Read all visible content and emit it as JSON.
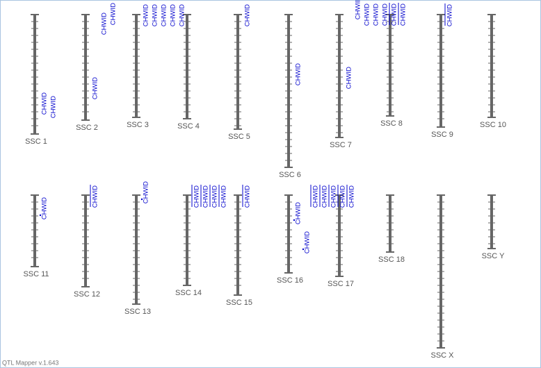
{
  "chromosomes": [
    {
      "label": "SSC 1",
      "qtls": [
        "CHWID",
        "CHWID"
      ]
    },
    {
      "label": "SSC 2",
      "qtls": [
        "CHWID",
        "CHWID",
        "CHWID"
      ]
    },
    {
      "label": "SSC 3",
      "qtls": [
        "CHWID",
        "CHWID",
        "CHWID",
        "CHWID"
      ]
    },
    {
      "label": "SSC 4",
      "qtls": [
        "CHWID"
      ]
    },
    {
      "label": "SSC 5",
      "qtls": [
        "CHWID"
      ]
    },
    {
      "label": "SSC 6",
      "qtls": [
        "CHWID"
      ]
    },
    {
      "label": "SSC 7",
      "qtls": [
        "CHWID",
        "CHWID",
        "CHWID"
      ]
    },
    {
      "label": "SSC 8",
      "qtls": [
        "CHWID",
        "CHWID",
        "CHWID",
        "CHWID"
      ]
    },
    {
      "label": "SSC 9",
      "qtls": [
        "CHWID"
      ]
    },
    {
      "label": "SSC 10",
      "qtls": []
    },
    {
      "label": "SSC 11",
      "qtls": [
        "CHWID"
      ]
    },
    {
      "label": "SSC 12",
      "qtls": [
        "CHWID"
      ]
    },
    {
      "label": "SSC 13",
      "qtls": [
        "CHWID"
      ]
    },
    {
      "label": "SSC 14",
      "qtls": [
        "CHWID",
        "CHWID",
        "CHWID",
        "CHWID"
      ]
    },
    {
      "label": "SSC 15",
      "qtls": [
        "CHWID"
      ]
    },
    {
      "label": "SSC 16",
      "qtls": [
        "CHWID",
        "CHWID"
      ]
    },
    {
      "label": "SSC 17",
      "qtls": [
        "CHWID",
        "CHWID",
        "CHWID",
        "CHWID",
        "CHWID"
      ]
    },
    {
      "label": "SSC 18",
      "qtls": []
    },
    {
      "label": "SSC X",
      "qtls": []
    },
    {
      "label": "SSC Y",
      "qtls": []
    }
  ],
  "footer": "QTL Mapper v.1.643"
}
